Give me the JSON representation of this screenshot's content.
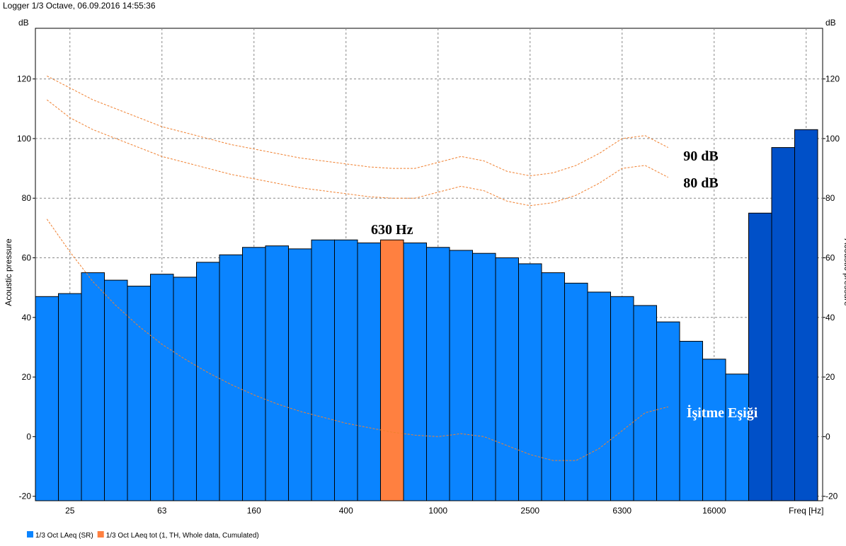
{
  "chart_data": {
    "type": "bar",
    "title": "Logger 1/3 Octave, 06.09.2016 14:55:36",
    "y_unit": "dB",
    "y_label": "Acoustic pressure",
    "categories": [
      null,
      "25",
      null,
      null,
      null,
      "63",
      null,
      null,
      null,
      "160",
      null,
      null,
      null,
      "400",
      null,
      null,
      null,
      "1000",
      null,
      null,
      null,
      "2500",
      null,
      null,
      null,
      "6300",
      null,
      null,
      null,
      "16000",
      null,
      null,
      null,
      "Freq [Hz]"
    ],
    "ylim": [
      -21.5,
      137
    ],
    "yticks": [
      -20,
      0,
      20,
      40,
      60,
      80,
      100,
      120
    ],
    "grid": true,
    "series": [
      {
        "name": "1/3 Oct LAeq (SR)",
        "color": "#0a84ff",
        "colors": [
          "#0a84ff",
          "#0a84ff",
          "#0a84ff",
          "#0a84ff",
          "#0a84ff",
          "#0a84ff",
          "#0a84ff",
          "#0a84ff",
          "#0a84ff",
          "#0a84ff",
          "#0a84ff",
          "#0a84ff",
          "#0a84ff",
          "#0a84ff",
          "#0a84ff",
          "#0a84ff",
          "#0a84ff",
          "#0a84ff",
          "#0a84ff",
          "#0a84ff",
          "#0a84ff",
          "#0a84ff",
          "#0a84ff",
          "#0a84ff",
          "#0a84ff",
          "#0a84ff",
          "#0a84ff",
          "#0a84ff",
          "#0a84ff",
          "#0a84ff",
          "#0a84ff",
          "#0050c8",
          "#0050c8",
          "#0050c8"
        ],
        "values": [
          47,
          48,
          55,
          52.5,
          50.5,
          54.5,
          53.5,
          58.5,
          61,
          63.5,
          64,
          63,
          66,
          66,
          65,
          null,
          65,
          63.5,
          62.5,
          61.5,
          60,
          58,
          55,
          51.5,
          48.5,
          47,
          44,
          38.5,
          32,
          26,
          21,
          75,
          97,
          103
        ]
      },
      {
        "name": "1/3 Oct LAeq tot (1, TH, Whole data, Cumulated)",
        "color": "#ff8040",
        "values": [
          null,
          null,
          null,
          null,
          null,
          null,
          null,
          null,
          null,
          null,
          null,
          null,
          null,
          null,
          null,
          66,
          null,
          null,
          null,
          null,
          null,
          null,
          null,
          null,
          null,
          null,
          null,
          null,
          null,
          null,
          null,
          null,
          null,
          null
        ]
      }
    ],
    "curves": [
      {
        "name": "90 dB",
        "color": "#f08030",
        "values": [
          121,
          117,
          113,
          110,
          107,
          104,
          102,
          100,
          98,
          96.5,
          95,
          93.5,
          92.5,
          91.5,
          90.5,
          90,
          90,
          92,
          94,
          92.5,
          89,
          87.5,
          88.5,
          91,
          95,
          100,
          101,
          97,
          null,
          null,
          null,
          null,
          null,
          null
        ]
      },
      {
        "name": "80 dB",
        "color": "#f08030",
        "values": [
          113,
          107,
          103,
          100,
          97,
          94,
          92,
          90,
          88,
          86.5,
          85,
          83.5,
          82.5,
          81.5,
          80.5,
          80,
          80,
          82,
          84,
          82.5,
          79,
          77.5,
          78.5,
          81,
          85,
          90,
          91,
          87,
          null,
          null,
          null,
          null,
          null,
          null
        ]
      },
      {
        "name": "İşitme Eşiği",
        "color": "#f08030",
        "values": [
          73,
          62,
          52,
          44,
          37,
          31,
          26,
          21.5,
          17.5,
          14,
          11,
          8.5,
          6.5,
          4.5,
          3,
          1.5,
          0.5,
          0,
          1,
          0,
          -3,
          -6,
          -8,
          -8,
          -4,
          2,
          8,
          10,
          null,
          null,
          null,
          null,
          null,
          null
        ]
      }
    ],
    "annotation": "630 Hz"
  }
}
